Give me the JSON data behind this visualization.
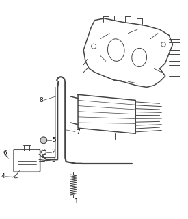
{
  "background_color": "#ffffff",
  "line_color": "#444444",
  "label_color": "#111111",
  "fig_width": 2.75,
  "fig_height": 3.2,
  "dpi": 100
}
